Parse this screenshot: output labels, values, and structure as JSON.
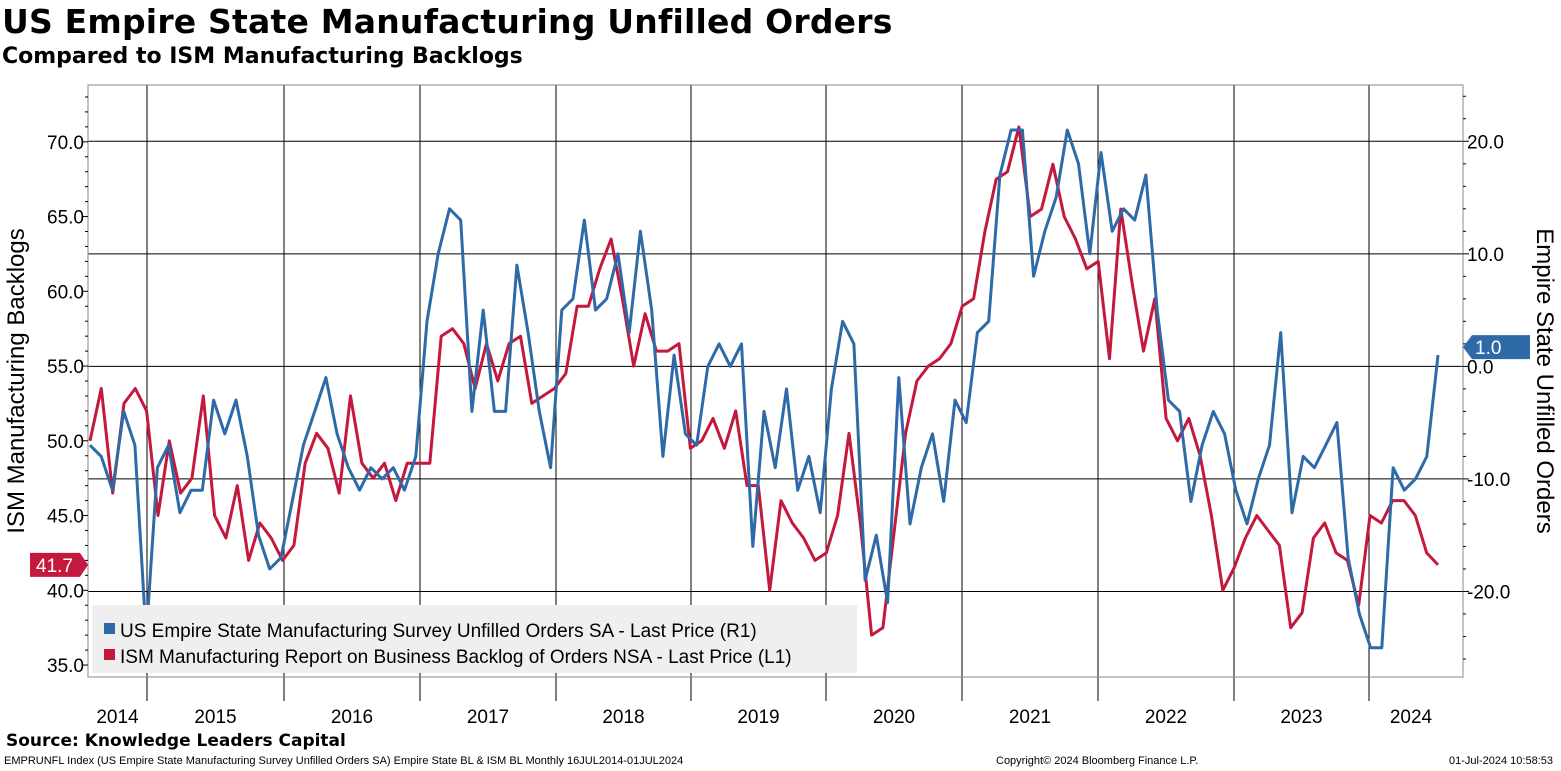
{
  "title": "US Empire State Manufacturing Unfilled Orders",
  "subtitle": "Compared to ISM Manufacturing Backlogs",
  "source": "Source: Knowledge Leaders Capital",
  "footer": {
    "left": "EMPRUNFL Index (US Empire State Manufacturing Survey Unfilled Orders SA) Empire State BL & ISM BL  Monthly 16JUL2014-01JUL2024",
    "center": "Copyright© 2024 Bloomberg Finance L.P.",
    "right": "01-Jul-2024 10:58:53"
  },
  "colors": {
    "empire": "#2e6aa8",
    "ism": "#c4183c"
  },
  "chart_data": {
    "type": "line",
    "x_start": "2014-07",
    "x_end": "2024-06",
    "x_frequency": "monthly",
    "xticks": [
      "2014",
      "2015",
      "2016",
      "2017",
      "2018",
      "2019",
      "2020",
      "2021",
      "2022",
      "2023",
      "2024"
    ],
    "left_axis": {
      "label": "ISM Manufacturing Backlogs",
      "ticks": [
        "35.0",
        "40.0",
        "45.0",
        "50.0",
        "55.0",
        "60.0",
        "65.0",
        "70.0"
      ],
      "range": [
        34.2,
        73.8
      ]
    },
    "right_axis": {
      "label": "Empire State Unfilled Orders",
      "ticks": [
        "-20.0",
        "-10.0",
        "0.0",
        "10.0",
        "20.0"
      ],
      "range": [
        -27.6,
        25.0
      ]
    },
    "grid": true,
    "legend_position": "bottom-left",
    "series": [
      {
        "name": "US Empire State Manufacturing Survey Unfilled Orders SA - Last Price (R1)",
        "axis": "right",
        "last_label": "1.0",
        "values": [
          -7.0,
          -8.0,
          -11.0,
          -4.0,
          -7.0,
          -24.0,
          -9.0,
          -7.0,
          -13.0,
          -11.0,
          -11.0,
          -3.0,
          -6.0,
          -3.0,
          -8.0,
          -15.0,
          -18.0,
          -17.0,
          -12.0,
          -7.0,
          -4.0,
          -1.0,
          -6.0,
          -9.0,
          -11.0,
          -9.0,
          -10.0,
          -9.0,
          -11.0,
          -8.0,
          4.0,
          10.0,
          14.0,
          13.0,
          -4.0,
          5.0,
          -4.0,
          -4.0,
          9.0,
          3.0,
          -4.0,
          -9.0,
          5.0,
          6.0,
          13.0,
          5.0,
          6.0,
          10.0,
          3.0,
          12.0,
          5.0,
          -8.0,
          1.0,
          -6.0,
          -7.0,
          0.0,
          2.0,
          0.0,
          2.0,
          -16.0,
          -4.0,
          -9.0,
          -2.0,
          -11.0,
          -8.0,
          -13.0,
          -2.0,
          4.0,
          2.0,
          -19.0,
          -15.0,
          -21.0,
          -1.0,
          -14.0,
          -9.0,
          -6.0,
          -12.0,
          -3.0,
          -5.0,
          3.0,
          4.0,
          17.0,
          21.0,
          21.0,
          8.0,
          12.0,
          15.0,
          21.0,
          18.0,
          10.0,
          19.0,
          12.0,
          14.0,
          13.0,
          17.0,
          5.0,
          -3.0,
          -4.0,
          -12.0,
          -7.0,
          -4.0,
          -6.0,
          -11.0,
          -14.0,
          -10.0,
          -7.0,
          3.0,
          -13.0,
          -8.0,
          -9.0,
          -7.0,
          -5.0,
          -17.0,
          -22.0,
          -25.0,
          -25.0,
          -9.0,
          -11.0,
          -10.0,
          -8.0,
          1.0
        ]
      },
      {
        "name": "ISM Manufacturing Report on Business Backlog of Orders NSA - Last Price (L1)",
        "axis": "left",
        "last_label": "41.7",
        "values": [
          50.0,
          53.5,
          46.5,
          52.5,
          53.5,
          52.0,
          45.0,
          50.0,
          46.5,
          47.5,
          53.0,
          45.0,
          43.5,
          47.0,
          42.0,
          44.5,
          43.5,
          42.0,
          43.0,
          48.5,
          50.5,
          49.5,
          46.5,
          53.0,
          48.5,
          47.5,
          48.5,
          46.0,
          48.5,
          48.5,
          48.5,
          57.0,
          57.5,
          56.5,
          53.5,
          56.5,
          54.0,
          56.5,
          57.0,
          52.5,
          53.0,
          53.5,
          54.5,
          59.0,
          59.0,
          61.5,
          63.5,
          59.5,
          55.0,
          58.5,
          56.0,
          56.0,
          56.5,
          49.5,
          50.0,
          51.5,
          49.5,
          52.0,
          47.0,
          47.0,
          40.0,
          46.0,
          44.5,
          43.5,
          42.0,
          42.5,
          45.0,
          50.5,
          44.5,
          37.0,
          37.5,
          44.0,
          50.5,
          54.0,
          55.0,
          55.5,
          56.5,
          59.0,
          59.5,
          64.0,
          67.5,
          68.0,
          71.0,
          65.0,
          65.5,
          68.5,
          65.0,
          63.5,
          61.5,
          62.0,
          55.5,
          65.5,
          60.5,
          56.0,
          59.5,
          51.5,
          50.0,
          51.5,
          49.0,
          45.0,
          40.0,
          41.5,
          43.5,
          45.0,
          44.0,
          43.0,
          37.5,
          38.5,
          43.5,
          44.5,
          42.5,
          42.0,
          39.0,
          45.0,
          44.5,
          46.0,
          46.0,
          45.0,
          42.5,
          41.7
        ]
      }
    ]
  }
}
